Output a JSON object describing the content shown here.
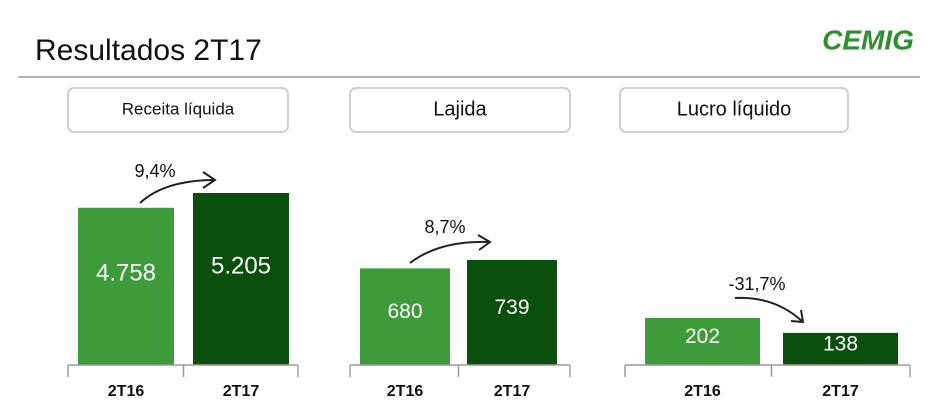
{
  "title": "Resultados 2T17",
  "logo": "CEMIG",
  "chart_data": [
    {
      "type": "bar",
      "title": "Receita líquida",
      "categories": [
        "2T16",
        "2T17"
      ],
      "values": [
        4758,
        5205
      ],
      "value_labels": [
        "4.758",
        "5.205"
      ],
      "colors": [
        "#3e9b3a",
        "#0b4f0c"
      ],
      "annotation": "9,4%"
    },
    {
      "type": "bar",
      "title": "Lajida",
      "categories": [
        "2T16",
        "2T17"
      ],
      "values": [
        680,
        739
      ],
      "colors": [
        "#3e9b3a",
        "#0b4f0c"
      ],
      "annotation": "8,7%"
    },
    {
      "type": "bar",
      "title": "Lucro líquido",
      "categories": [
        "2T16",
        "2T17"
      ],
      "values": [
        202,
        138
      ],
      "colors": [
        "#3e9b3a",
        "#0b4f0c"
      ],
      "annotation": "-31,7%"
    }
  ]
}
